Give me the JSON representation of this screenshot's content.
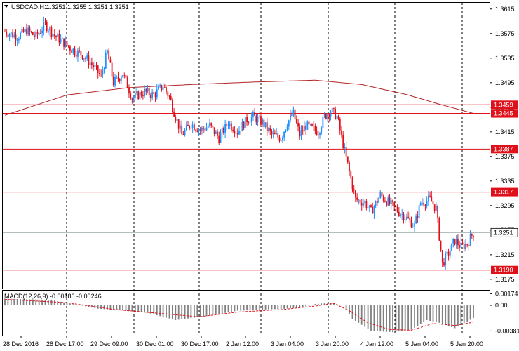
{
  "header": {
    "title": "USDCAD,H1",
    "ohlc": "1.3251 1.3255 1.3251 1.3251"
  },
  "macd_label": "MACD(12,26,9) -0.00186 -0.00246",
  "colors": {
    "bull": "#1e90ff",
    "bear": "#e0101a",
    "level_line": "#e0101a",
    "ma_line": "#b22222",
    "macd_hist": "#808080",
    "signal": "#e0101a",
    "current_price_line": "#a9b4b4"
  },
  "chart_data": {
    "type": "candlestick",
    "symbol": "USDCAD",
    "timeframe": "H1",
    "ylim": [
      1.316,
      1.3625
    ],
    "y_ticks": [
      "1.3615",
      "1.3575",
      "1.3535",
      "1.3495",
      "1.3455",
      "1.3415",
      "1.3375",
      "1.3335",
      "1.3295",
      "1.3255",
      "1.3215",
      "1.3175"
    ],
    "x_ticks": [
      "28 Dec 2016",
      "28 Dec 17:00",
      "29 Dec 09:00",
      "30 Dec 01:00",
      "30 Dec 17:00",
      "2 Jan 12:00",
      "3 Jan 04:00",
      "3 Jan 20:00",
      "4 Jan 12:00",
      "5 Jan 04:00",
      "5 Jan 20:00"
    ],
    "levels": [
      {
        "label": "1.3459",
        "value": 1.3459
      },
      {
        "label": "1.3445",
        "value": 1.3445
      },
      {
        "label": "1.3387",
        "value": 1.3387
      },
      {
        "label": "1.3317",
        "value": 1.3317
      },
      {
        "label": "1.3190",
        "value": 1.319
      }
    ],
    "current_price": {
      "label": "1.3251",
      "value": 1.3251
    },
    "anchors": [
      [
        0,
        1.3578
      ],
      [
        8,
        1.357
      ],
      [
        14,
        1.358
      ],
      [
        20,
        1.357
      ],
      [
        26,
        1.359
      ],
      [
        32,
        1.3572
      ],
      [
        38,
        1.356
      ],
      [
        44,
        1.3548
      ],
      [
        50,
        1.354
      ],
      [
        56,
        1.3525
      ],
      [
        62,
        1.3505
      ],
      [
        66,
        1.3545
      ],
      [
        70,
        1.3495
      ],
      [
        76,
        1.351
      ],
      [
        82,
        1.347
      ],
      [
        90,
        1.348
      ],
      [
        96,
        1.3475
      ],
      [
        102,
        1.349
      ],
      [
        106,
        1.3472
      ],
      [
        110,
        1.344
      ],
      [
        114,
        1.341
      ],
      [
        120,
        1.3428
      ],
      [
        126,
        1.3418
      ],
      [
        132,
        1.3425
      ],
      [
        138,
        1.3405
      ],
      [
        144,
        1.343
      ],
      [
        150,
        1.3415
      ],
      [
        156,
        1.3435
      ],
      [
        160,
        1.344
      ],
      [
        166,
        1.343
      ],
      [
        172,
        1.341
      ],
      [
        178,
        1.3405
      ],
      [
        182,
        1.343
      ],
      [
        186,
        1.3445
      ],
      [
        190,
        1.341
      ],
      [
        194,
        1.3425
      ],
      [
        198,
        1.342
      ],
      [
        202,
        1.3415
      ],
      [
        206,
        1.344
      ],
      [
        210,
        1.345
      ],
      [
        214,
        1.344
      ],
      [
        218,
        1.3395
      ],
      [
        222,
        1.335
      ],
      [
        226,
        1.3305
      ],
      [
        232,
        1.33
      ],
      [
        236,
        1.3285
      ],
      [
        242,
        1.3312
      ],
      [
        248,
        1.3298
      ],
      [
        254,
        1.3285
      ],
      [
        260,
        1.3272
      ],
      [
        264,
        1.3262
      ],
      [
        268,
        1.33
      ],
      [
        274,
        1.3305
      ],
      [
        278,
        1.329
      ],
      [
        282,
        1.32
      ],
      [
        286,
        1.3218
      ],
      [
        290,
        1.3238
      ],
      [
        294,
        1.3228
      ],
      [
        298,
        1.3233
      ],
      [
        302,
        1.3251
      ]
    ],
    "ma_anchors": [
      [
        0,
        1.3442
      ],
      [
        40,
        1.3475
      ],
      [
        80,
        1.3487
      ],
      [
        120,
        1.3492
      ],
      [
        160,
        1.3496
      ],
      [
        200,
        1.3499
      ],
      [
        230,
        1.3492
      ],
      [
        260,
        1.3475
      ],
      [
        280,
        1.346
      ],
      [
        302,
        1.3445
      ]
    ],
    "macd": {
      "ylim": [
        -0.0045,
        0.0022
      ],
      "y_ticks": [
        "0.00174",
        "0.00",
        "-0.00381"
      ],
      "anchors": [
        [
          0,
          0.001
        ],
        [
          30,
          0.0008
        ],
        [
          60,
          -0.0005
        ],
        [
          90,
          -0.001
        ],
        [
          110,
          -0.0022
        ],
        [
          130,
          -0.0016
        ],
        [
          150,
          -0.0008
        ],
        [
          170,
          -0.0006
        ],
        [
          190,
          -0.0004
        ],
        [
          200,
          0.0002
        ],
        [
          210,
          0.0004
        ],
        [
          218,
          0.0
        ],
        [
          224,
          -0.002
        ],
        [
          236,
          -0.0038
        ],
        [
          250,
          -0.004
        ],
        [
          262,
          -0.0036
        ],
        [
          272,
          -0.0022
        ],
        [
          280,
          -0.0026
        ],
        [
          290,
          -0.0034
        ],
        [
          302,
          -0.0019
        ]
      ],
      "signal_anchors": [
        [
          0,
          0.0009
        ],
        [
          40,
          0.0004
        ],
        [
          70,
          -0.0006
        ],
        [
          100,
          -0.0012
        ],
        [
          125,
          -0.0017
        ],
        [
          150,
          -0.001
        ],
        [
          180,
          -0.0006
        ],
        [
          200,
          -0.0001
        ],
        [
          212,
          0.0003
        ],
        [
          222,
          -0.0008
        ],
        [
          234,
          -0.0026
        ],
        [
          248,
          -0.0036
        ],
        [
          262,
          -0.0037
        ],
        [
          276,
          -0.0027
        ],
        [
          290,
          -0.003
        ],
        [
          302,
          -0.0025
        ]
      ]
    }
  }
}
